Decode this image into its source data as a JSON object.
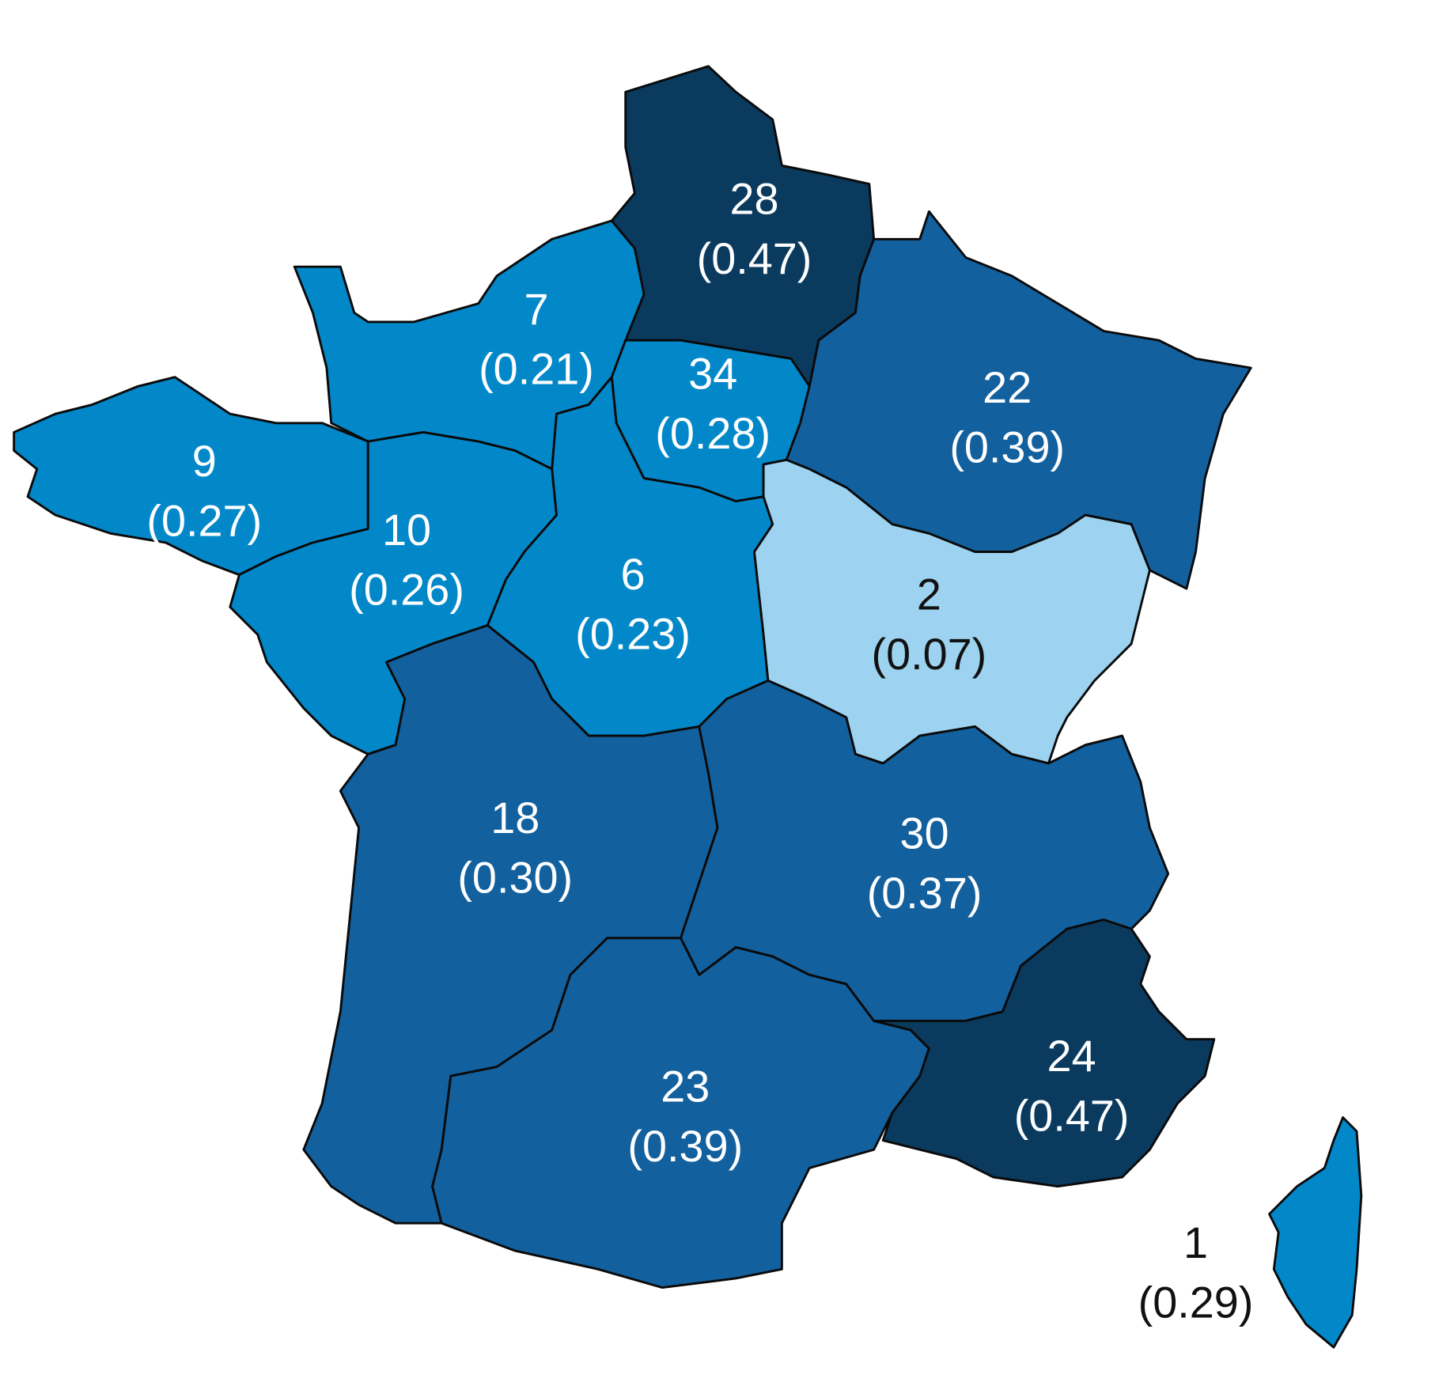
{
  "map": {
    "regions": [
      {
        "count": "28",
        "share": "(0.47)",
        "color": "#0a3a5e"
      },
      {
        "count": "7",
        "share": "(0.21)",
        "color": "#0288c9"
      },
      {
        "count": "34",
        "share": "(0.28)",
        "color": "#0288c9"
      },
      {
        "count": "22",
        "share": "(0.39)",
        "color": "#12609e"
      },
      {
        "count": "9",
        "share": "(0.27)",
        "color": "#0288c9"
      },
      {
        "count": "10",
        "share": "(0.26)",
        "color": "#0288c9"
      },
      {
        "count": "6",
        "share": "(0.23)",
        "color": "#0288c9"
      },
      {
        "count": "2",
        "share": "(0.07)",
        "color": "#9dd3f0"
      },
      {
        "count": "18",
        "share": "(0.30)",
        "color": "#12609e"
      },
      {
        "count": "30",
        "share": "(0.37)",
        "color": "#12609e"
      },
      {
        "count": "23",
        "share": "(0.39)",
        "color": "#12609e"
      },
      {
        "count": "24",
        "share": "(0.47)",
        "color": "#0a3a5e"
      },
      {
        "count": "1",
        "share": "(0.29)",
        "color": "#0288c9"
      }
    ]
  }
}
